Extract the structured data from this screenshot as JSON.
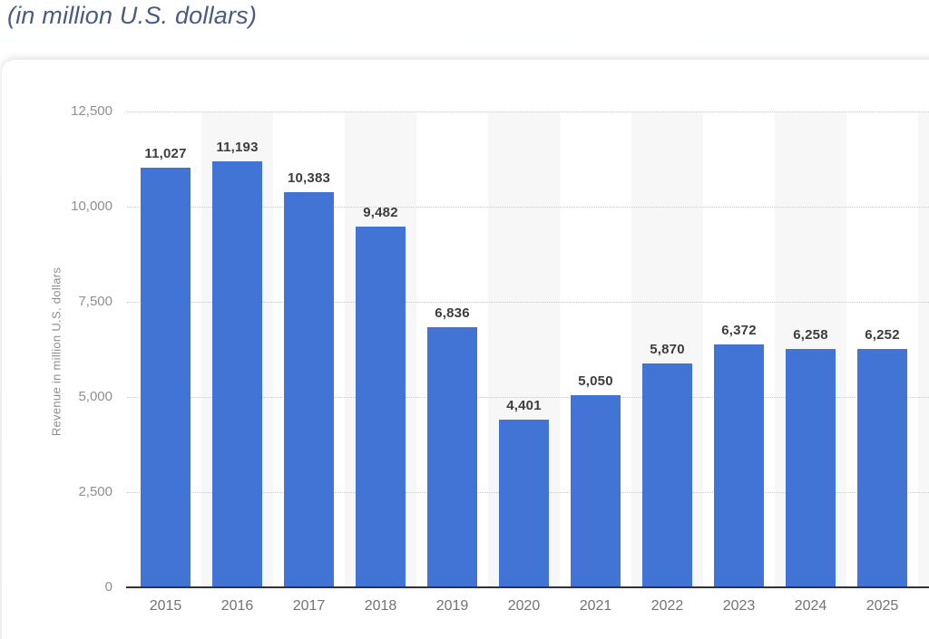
{
  "header": {
    "subtitle": "(in million U.S. dollars)"
  },
  "chart_data": {
    "type": "bar",
    "title": "(in million U.S. dollars)",
    "categories": [
      "2015",
      "2016",
      "2017",
      "2018",
      "2019",
      "2020",
      "2021",
      "2022",
      "2023",
      "2024",
      "2025"
    ],
    "values": [
      11027,
      11193,
      10383,
      9482,
      6836,
      4401,
      5050,
      5870,
      6372,
      6258,
      6252
    ],
    "value_labels": [
      "11,027",
      "11,193",
      "10,383",
      "9,482",
      "6,836",
      "4,401",
      "5,050",
      "5,870",
      "6,372",
      "6,258",
      "6,252"
    ],
    "xlabel": "",
    "ylabel": "Revenue in million U.S. dollars",
    "ylim": [
      0,
      12500
    ],
    "yticks": [
      0,
      2500,
      5000,
      7500,
      10000,
      12500
    ],
    "ytick_labels": [
      "0",
      "2,500",
      "5,000",
      "7,500",
      "10,000",
      "12,500"
    ],
    "grid": "horizontal-dotted",
    "legend_position": "none",
    "alternating_column_bands": true
  },
  "colors": {
    "bar": "#4174d4",
    "band": "#f7f7f8",
    "subtitle_text": "#485d80",
    "value_label_text": "#3d3d3d",
    "ytick_text": "#8f8f8f",
    "x_label_text": "#737373",
    "axis_line": "#333333",
    "gridline": "#c9c9c9",
    "card_bg": "#ffffff"
  }
}
